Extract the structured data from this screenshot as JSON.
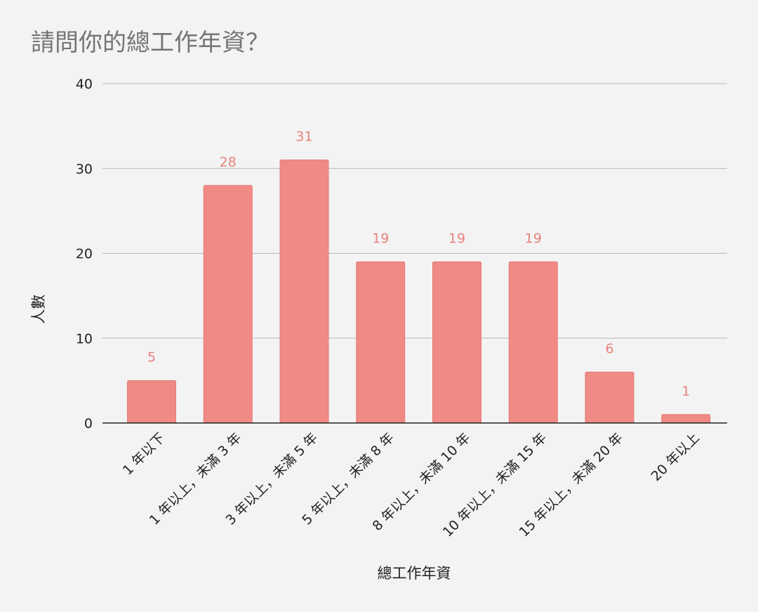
{
  "chart_data": {
    "type": "bar",
    "title": "請問你的總工作年資？",
    "xlabel": "總工作年資",
    "ylabel": "人數",
    "categories": [
      "1 年以下",
      "1 年以上，未滿 3 年",
      "3 年以上，未滿 5 年",
      "5 年以上，未滿 8 年",
      "8 年以上，未滿 10 年",
      "10 年以上，未滿 15 年",
      "15 年以上，未滿 20 年",
      "20 年以上"
    ],
    "values": [
      5,
      28,
      31,
      19,
      19,
      19,
      6,
      1
    ],
    "ylim": [
      0,
      40
    ],
    "yticks": [
      0,
      10,
      20,
      30,
      40
    ],
    "grid": true,
    "legend": "none",
    "bar_color": "#f08a85",
    "label_color": "#e8837c"
  }
}
